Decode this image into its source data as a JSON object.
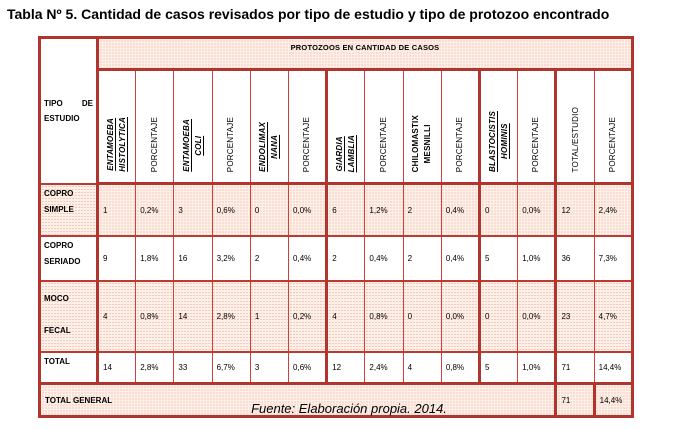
{
  "title": "Tabla Nº 5. Cantidad de casos revisados por tipo de estudio y tipo de protozoo encontrado",
  "source": "Fuente: Elaboración propia. 2014.",
  "table": {
    "banner": "PROTOZOOS EN CANTIDAD DE CASOS",
    "corner": "TIPO DE ESTUDIO",
    "columns": [
      {
        "label": "ENTAMOEBA\nHISTOLYTICA",
        "style": "species"
      },
      {
        "label": "PORCENTAJE",
        "style": "plain"
      },
      {
        "label": "ENTAMOEBA\nCOLI",
        "style": "species"
      },
      {
        "label": "PORCENTAJE",
        "style": "plain"
      },
      {
        "label": "ENDOLIMAX\nNANA",
        "style": "species"
      },
      {
        "label": "PORCENTAJE",
        "style": "plain"
      },
      {
        "label": "GIARDIA\nLAMBLIA",
        "style": "species"
      },
      {
        "label": "PORCENTAJE",
        "style": "plain"
      },
      {
        "label": "CHILOMASTIX\nMESNILLI",
        "style": "bold"
      },
      {
        "label": "PORCENTAJE",
        "style": "plain"
      },
      {
        "label": "BLASTOCISTIS\nHOMINIS",
        "style": "species"
      },
      {
        "label": "PORCENTAJE",
        "style": "plain"
      },
      {
        "label": "TOTAL/ESTUDIO",
        "style": "plain"
      },
      {
        "label": "PORCENTAJE",
        "style": "plain"
      }
    ],
    "rows": [
      {
        "label": "COPRO SIMPLE",
        "values": [
          "1",
          "0,2%",
          "3",
          "0,6%",
          "0",
          "0,0%",
          "6",
          "1,2%",
          "2",
          "0,4%",
          "0",
          "0,0%",
          "12",
          "2,4%"
        ]
      },
      {
        "label": "COPRO SERIADO",
        "values": [
          "9",
          "1,8%",
          "16",
          "3,2%",
          "2",
          "0,4%",
          "2",
          "0,4%",
          "2",
          "0,4%",
          "5",
          "1,0%",
          "36",
          "7,3%"
        ]
      },
      {
        "label": "MOCO FECAL",
        "values": [
          "4",
          "0,8%",
          "14",
          "2,8%",
          "1",
          "0,2%",
          "4",
          "0,8%",
          "0",
          "0,0%",
          "0",
          "0,0%",
          "23",
          "4,7%"
        ]
      },
      {
        "label": "TOTAL",
        "values": [
          "14",
          "2,8%",
          "33",
          "6,7%",
          "3",
          "0,6%",
          "12",
          "2,4%",
          "4",
          "0,8%",
          "5",
          "1,0%",
          "71",
          "14,4%"
        ]
      }
    ],
    "total_general": {
      "label": "TOTAL GENERAL",
      "total": "71",
      "pct": "14,4%"
    }
  },
  "colors": {
    "border_dark": "#b0352e",
    "border_light": "#cf4138",
    "fill_pink_dot": "#eca29b",
    "fill_pink_base": "#fdf0e7",
    "text": "#000000"
  }
}
